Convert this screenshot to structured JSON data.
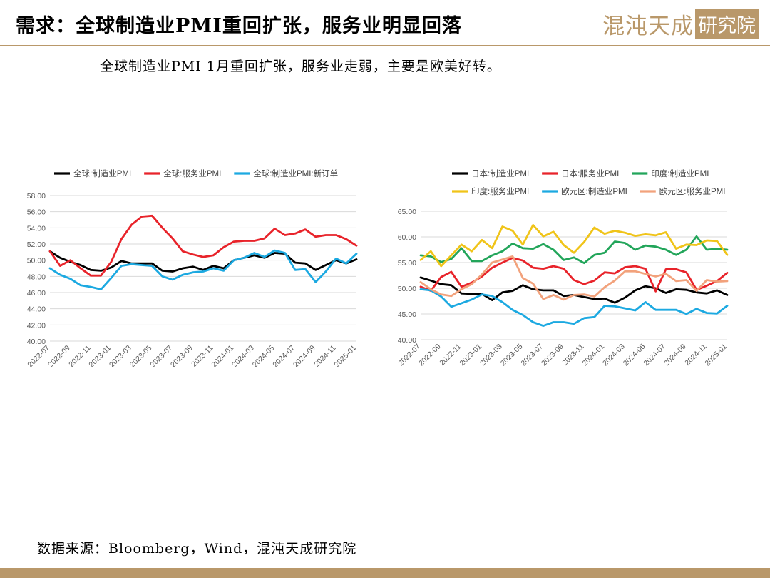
{
  "header": {
    "title": "需求：全球制造业PMI重回扩张，服务业明显回落",
    "logo_text": "混沌天成",
    "logo_box_text": "研究院"
  },
  "subtitle": "全球制造业PMI 1月重回扩张，服务业走弱，主要是欧美好转。",
  "source": "数据来源：Bloomberg，Wind，混沌天成研究院",
  "chart_data": [
    {
      "type": "line",
      "ylim": [
        40,
        58
      ],
      "ytick_labels": [
        "40.00",
        "42.00",
        "44.00",
        "46.00",
        "48.00",
        "50.00",
        "52.00",
        "54.00",
        "56.00",
        "58.00"
      ],
      "xtick_labels": [
        "2022-07",
        "2022-09",
        "2022-11",
        "2023-01",
        "2023-03",
        "2023-05",
        "2023-07",
        "2023-09",
        "2023-11",
        "2024-01",
        "2024-03",
        "2024-05",
        "2024-07",
        "2024-09",
        "2024-11",
        "2025-01"
      ],
      "grid": true,
      "legend_position": "top",
      "series": [
        {
          "name": "全球:制造业PMI",
          "color": "#000000",
          "values": [
            51.1,
            50.3,
            49.8,
            49.4,
            48.8,
            48.7,
            49.1,
            49.9,
            49.6,
            49.6,
            49.6,
            48.7,
            48.6,
            49.0,
            49.2,
            48.8,
            49.3,
            49.0,
            50.0,
            50.3,
            50.6,
            50.3,
            50.9,
            50.8,
            49.7,
            49.6,
            48.8,
            49.4,
            50.0,
            49.6,
            50.1
          ]
        },
        {
          "name": "全球:服务业PMI",
          "color": "#e8232a",
          "values": [
            51.1,
            49.3,
            50.0,
            49.0,
            48.1,
            48.1,
            49.8,
            52.6,
            54.4,
            55.4,
            55.5,
            54.0,
            52.7,
            51.1,
            50.7,
            50.4,
            50.6,
            51.6,
            52.3,
            52.4,
            52.4,
            52.7,
            53.9,
            53.1,
            53.3,
            53.8,
            52.9,
            53.1,
            53.1,
            52.6,
            51.8
          ]
        },
        {
          "name": "全球:制造业PMI:新订单",
          "color": "#1ca9e1",
          "values": [
            49.0,
            48.2,
            47.7,
            46.9,
            46.7,
            46.4,
            47.8,
            49.3,
            49.5,
            49.4,
            49.3,
            48.0,
            47.6,
            48.2,
            48.5,
            48.6,
            49.0,
            48.7,
            50.0,
            50.3,
            50.9,
            50.4,
            51.2,
            50.9,
            48.8,
            48.9,
            47.3,
            48.6,
            50.2,
            49.6,
            50.8
          ]
        }
      ]
    },
    {
      "type": "line",
      "ylim": [
        40,
        65
      ],
      "ytick_labels": [
        "40.00",
        "45.00",
        "50.00",
        "55.00",
        "60.00",
        "65.00"
      ],
      "xtick_labels": [
        "2022-07",
        "2022-09",
        "2022-11",
        "2023-01",
        "2023-03",
        "2023-05",
        "2023-07",
        "2023-09",
        "2023-11",
        "2024-01",
        "2024-03",
        "2024-05",
        "2024-07",
        "2024-09",
        "2024-11",
        "2025-01"
      ],
      "grid": true,
      "legend_position": "top",
      "series": [
        {
          "name": "日本:制造业PMI",
          "color": "#000000",
          "values": [
            52.1,
            51.5,
            50.8,
            50.6,
            49.0,
            48.9,
            48.9,
            47.7,
            49.2,
            49.5,
            50.6,
            49.8,
            49.6,
            49.6,
            48.5,
            48.7,
            48.3,
            47.9,
            48.0,
            47.2,
            48.2,
            49.6,
            50.4,
            50.0,
            49.1,
            49.8,
            49.7,
            49.2,
            49.0,
            49.6,
            48.7
          ]
        },
        {
          "name": "日本:服务业PMI",
          "color": "#e8232a",
          "values": [
            50.3,
            49.5,
            52.2,
            53.2,
            50.3,
            51.1,
            52.3,
            54.0,
            55.0,
            55.9,
            55.4,
            54.0,
            53.8,
            54.3,
            53.8,
            51.6,
            50.8,
            51.5,
            53.1,
            52.9,
            54.1,
            54.3,
            53.8,
            49.4,
            53.7,
            53.7,
            53.1,
            49.7,
            50.5,
            51.4,
            53.0
          ]
        },
        {
          "name": "印度:制造业PMI",
          "color": "#22a55a",
          "values": [
            56.4,
            56.2,
            55.1,
            55.7,
            57.8,
            55.3,
            55.3,
            56.4,
            57.2,
            58.7,
            57.8,
            57.7,
            58.6,
            57.5,
            55.5,
            56.0,
            54.9,
            56.5,
            56.9,
            59.1,
            58.8,
            57.5,
            58.3,
            58.1,
            57.5,
            56.5,
            57.5,
            60.1,
            57.5,
            57.7,
            57.5
          ]
        },
        {
          "name": "印度:服务业PMI",
          "color": "#f0c419",
          "values": [
            55.5,
            57.2,
            54.3,
            56.4,
            58.5,
            57.2,
            59.4,
            57.8,
            62.0,
            61.2,
            58.5,
            62.3,
            60.1,
            61.0,
            58.4,
            56.9,
            59.0,
            61.8,
            60.6,
            61.2,
            60.8,
            60.2,
            60.5,
            60.3,
            60.9,
            57.7,
            58.5,
            58.4,
            59.3,
            59.2,
            56.5
          ]
        },
        {
          "name": "欧元区:制造业PMI",
          "color": "#1ca9e1",
          "values": [
            49.8,
            49.6,
            48.4,
            46.4,
            47.1,
            47.8,
            48.8,
            48.5,
            47.3,
            45.8,
            44.8,
            43.4,
            42.7,
            43.4,
            43.4,
            43.1,
            44.2,
            44.4,
            46.6,
            46.5,
            46.1,
            45.7,
            47.3,
            45.8,
            45.8,
            45.8,
            45.0,
            46.0,
            45.2,
            45.1,
            46.6
          ]
        },
        {
          "name": "欧元区:服务业PMI",
          "color": "#f2a27c",
          "values": [
            51.2,
            49.8,
            48.8,
            48.5,
            49.8,
            50.8,
            52.7,
            55.0,
            55.6,
            56.2,
            52.0,
            50.9,
            47.9,
            48.7,
            47.8,
            48.7,
            48.8,
            48.4,
            50.2,
            51.5,
            53.3,
            53.3,
            52.8,
            52.3,
            52.8,
            51.4,
            51.6,
            49.5,
            51.6,
            51.3,
            51.4
          ]
        }
      ]
    }
  ]
}
